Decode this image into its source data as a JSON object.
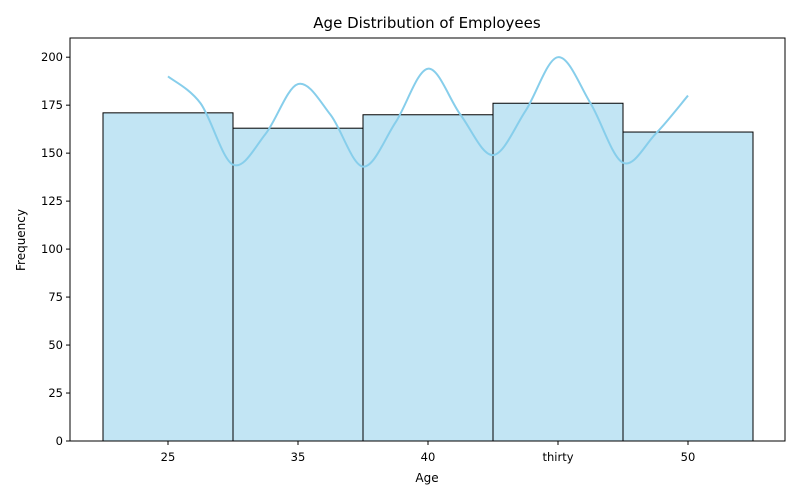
{
  "chart_data": {
    "type": "bar",
    "title": "Age Distribution of Employees",
    "xlabel": "Age",
    "ylabel": "Frequency",
    "categories": [
      "25",
      "35",
      "40",
      "thirty",
      "50"
    ],
    "values": [
      171,
      163,
      170,
      176,
      161
    ],
    "ylim": [
      0,
      210
    ],
    "yticks": [
      0,
      25,
      50,
      75,
      100,
      125,
      150,
      175,
      200
    ],
    "grid": false,
    "kde_curve": {
      "x": [
        0,
        0.25,
        0.5,
        0.75,
        1,
        1.25,
        1.5,
        1.75,
        2,
        2.25,
        2.5,
        2.75,
        3,
        3.25,
        3.5,
        3.75,
        4
      ],
      "y": [
        190,
        176,
        144,
        160,
        186,
        170,
        143,
        166,
        194,
        170,
        149,
        172,
        200,
        176,
        145,
        160,
        180
      ]
    },
    "colors": {
      "bar_fill": "#c2e5f4",
      "bar_edge": "#000000",
      "curve": "#87ceeb"
    }
  }
}
